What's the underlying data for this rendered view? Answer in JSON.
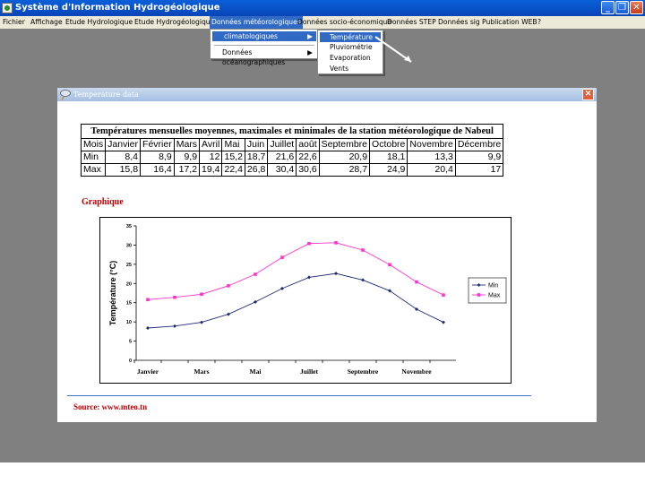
{
  "app": {
    "title": "Système d'Information Hydrogéologique"
  },
  "menubar": {
    "items": [
      "Fichier",
      "Affichage",
      "Etude Hydrologique",
      "Etude Hydrogéologique",
      "Données météorologiques",
      "Données socio-économique",
      "Données STEP",
      "Données sig",
      "Publication WEB",
      "?"
    ]
  },
  "submenu": {
    "item1": "climatologiques",
    "item2": "Données océanographiques",
    "arrow": "▶"
  },
  "submenu2": {
    "items": [
      "Température",
      "Pluviométrie",
      "Evaporation",
      "Vents"
    ]
  },
  "window": {
    "title": "Temperature data",
    "close": "✕"
  },
  "table": {
    "caption": "Températures mensuelles moyennes, maximales et minimales  de la station météorologique de Nabeul",
    "headers": [
      "Mois",
      "Janvier",
      "Février",
      "Mars",
      "Avril",
      "Mai",
      "Juin",
      "Juillet",
      "août",
      "Septembre",
      "Octobre",
      "Novembre",
      "Décembre"
    ],
    "rows": [
      [
        "Min",
        "8,4",
        "8,9",
        "9,9",
        "12",
        "15,2",
        "18,7",
        "21,6",
        "22,6",
        "20,9",
        "18,1",
        "13,3",
        "9,9"
      ],
      [
        "Max",
        "15,8",
        "16,4",
        "17,2",
        "19,4",
        "22,4",
        "26,8",
        "30,4",
        "30,6",
        "28,7",
        "24,9",
        "20,4",
        "17"
      ]
    ]
  },
  "graph_title": "Graphique",
  "source": "Source: www.mteo.tn",
  "colors": {
    "min": "#1f2a78",
    "max": "#ff33cc",
    "accent": "#316ac5"
  },
  "chart_data": {
    "type": "line",
    "categories": [
      "Janvier",
      "Février",
      "Mars",
      "Avril",
      "Mai",
      "Juin",
      "Juillet",
      "août",
      "Septembre",
      "Octobre",
      "Novembre",
      "Décembre"
    ],
    "x_tick_labels": [
      "Janvier",
      "Mars",
      "Mai",
      "Juillet",
      "Septembre",
      "Novembre"
    ],
    "series": [
      {
        "name": "Min",
        "values": [
          8.4,
          8.9,
          9.9,
          12,
          15.2,
          18.7,
          21.6,
          22.6,
          20.9,
          18.1,
          13.3,
          9.9
        ]
      },
      {
        "name": "Max",
        "values": [
          15.8,
          16.4,
          17.2,
          19.4,
          22.4,
          26.8,
          30.4,
          30.6,
          28.7,
          24.9,
          20.4,
          17
        ]
      }
    ],
    "title": "",
    "xlabel": "",
    "ylabel": "Température (°C)",
    "ylim": [
      0,
      35
    ],
    "yticks": [
      0,
      5,
      10,
      15,
      20,
      25,
      30,
      35
    ],
    "grid": false,
    "legend": "right"
  }
}
